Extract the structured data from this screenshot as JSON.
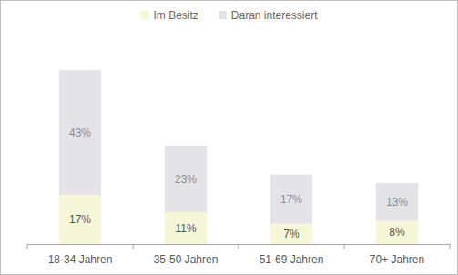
{
  "chart_data": {
    "type": "bar",
    "stacked": true,
    "categories": [
      "18-34 Jahren",
      "35-50 Jahren",
      "51-69 Jahren",
      "70+ Jahren"
    ],
    "series": [
      {
        "name": "Im Besitz",
        "color": "#f6f6d8",
        "values": [
          17,
          11,
          7,
          8
        ],
        "value_labels": [
          "17%",
          "11%",
          "7%",
          "8%"
        ]
      },
      {
        "name": "Daran interessiert",
        "color": "#e3e3e8",
        "values": [
          43,
          23,
          17,
          13
        ],
        "value_labels": [
          "43%",
          "23%",
          "17%",
          "13%"
        ]
      }
    ],
    "ylim": [
      0,
      60
    ],
    "legend": "top",
    "data_labels": true,
    "tick_labels": "x"
  }
}
